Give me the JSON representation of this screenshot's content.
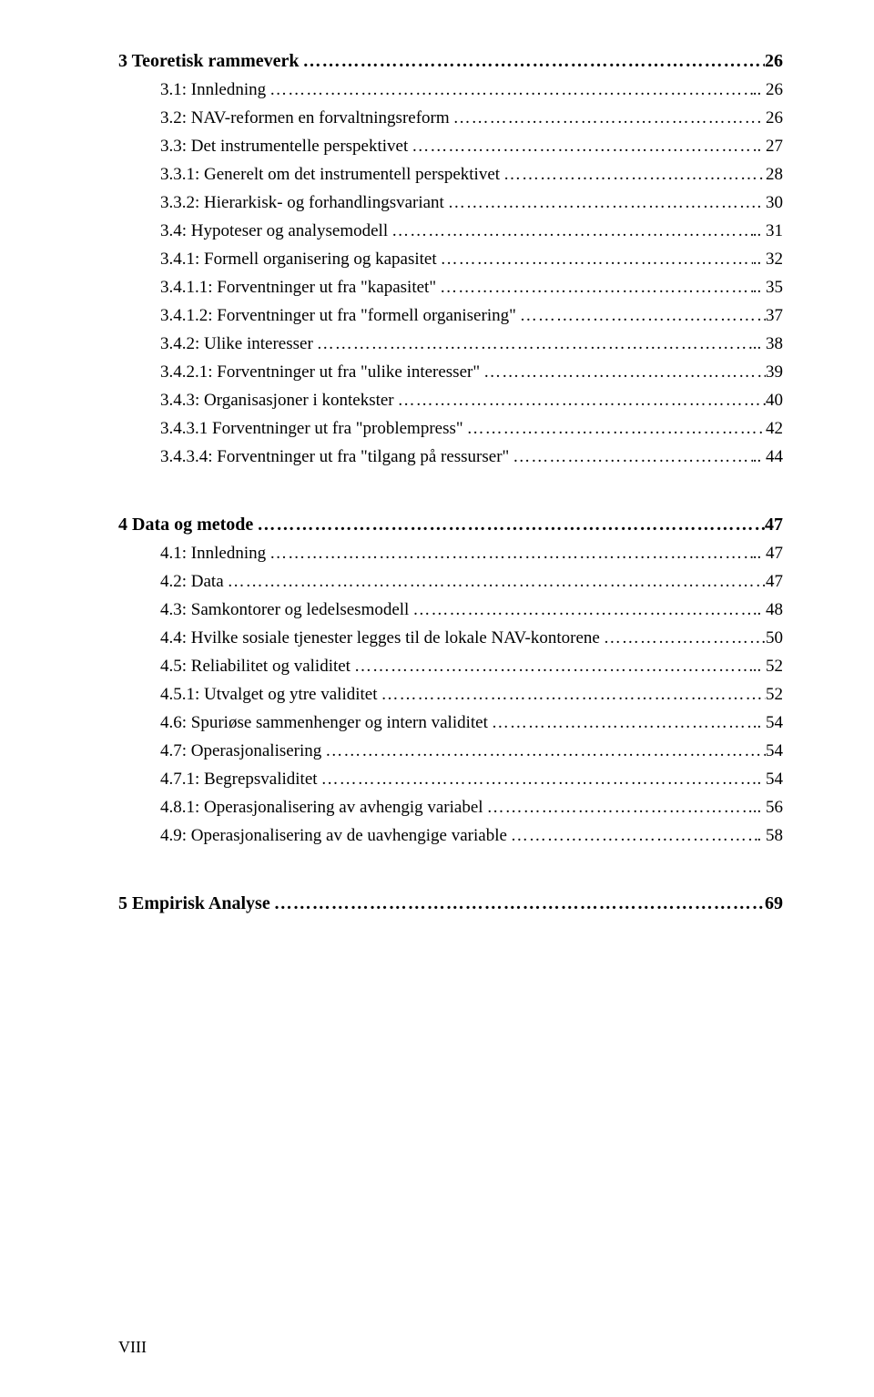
{
  "leader": "…………………………………………………………………………………………………………………………………………………………",
  "sections": [
    {
      "heading": {
        "text": "3 Teoretisk rammeverk",
        "page": "26"
      },
      "entries": [
        {
          "text": "3.1: Innledning",
          "sep": "..",
          "page": "26"
        },
        {
          "text": "3.2: NAV-reformen en forvaltningsreform",
          "sep": ".",
          "page": "26"
        },
        {
          "text": "3.3: Det instrumentelle perspektivet",
          "sep": "..",
          "page": "27"
        },
        {
          "text": "3.3.1: Generelt om det instrumentell perspektivet",
          "sep": "",
          "page": "28"
        },
        {
          "text": "3.3.2: Hierarkisk- og forhandlingsvariant",
          "sep": ".",
          "page": "30"
        },
        {
          "text": "3.4: Hypoteser og analysemodell",
          "sep": "..",
          "page": "31"
        },
        {
          "text": "3.4.1: Formell organisering og kapasitet",
          "sep": "..",
          "page": "32"
        },
        {
          "text": "3.4.1.1: Forventninger ut fra \"kapasitet\"",
          "sep": "..",
          "page": "35"
        },
        {
          "text": "3.4.1.2: Forventninger ut fra \"formell organisering\"",
          "sep": "",
          "page": "37"
        },
        {
          "text": "3.4.2: Ulike interesser",
          "sep": "...",
          "page": "38"
        },
        {
          "text": "3.4.2.1: Forventninger ut fra \"ulike interesser\"",
          "sep": "",
          "page": "39"
        },
        {
          "text": "3.4.3: Organisasjoner i kontekster",
          "sep": "",
          "page": "40"
        },
        {
          "text": "3.4.3.1 Forventninger ut fra \"problempress\"",
          "sep": "",
          "page": "42"
        },
        {
          "text": "3.4.3.4: Forventninger ut fra \"tilgang på ressurser\"",
          "sep": "..",
          "page": "44"
        }
      ]
    },
    {
      "heading": {
        "text": "4 Data og metode",
        "page": "47"
      },
      "entries": [
        {
          "text": "4.1: Innledning",
          "sep": "..",
          "page": "47"
        },
        {
          "text": "4.2: Data",
          "sep": "",
          "page": "47"
        },
        {
          "text": "4.3: Samkontorer og ledelsesmodell",
          "sep": ".",
          "page": "48"
        },
        {
          "text": "4.4: Hvilke sosiale tjenester legges til de lokale NAV-kontorene",
          "sep": "",
          "page": "50"
        },
        {
          "text": "4.5: Reliabilitet og validitet",
          "sep": "..",
          "page": "52"
        },
        {
          "text": "4.5.1: Utvalget og ytre validitet",
          "sep": "",
          "page": "52"
        },
        {
          "text": "4.6: Spuriøse sammenhenger og intern validitet",
          "sep": "..",
          "page": "54"
        },
        {
          "text": "4.7: Operasjonalisering",
          "sep": "",
          "page": "54"
        },
        {
          "text": "4.7.1: Begrepsvaliditet",
          "sep": ".",
          "page": "54"
        },
        {
          "text": "4.8.1: Operasjonalisering av avhengig variabel",
          "sep": "..",
          "page": "56"
        },
        {
          "text": "4.9: Operasjonalisering av de uavhengige variable",
          "sep": ".",
          "page": "58"
        }
      ]
    },
    {
      "heading": {
        "text": "5 Empirisk Analyse",
        "page": "69"
      },
      "entries": []
    }
  ],
  "footer": "VIII"
}
